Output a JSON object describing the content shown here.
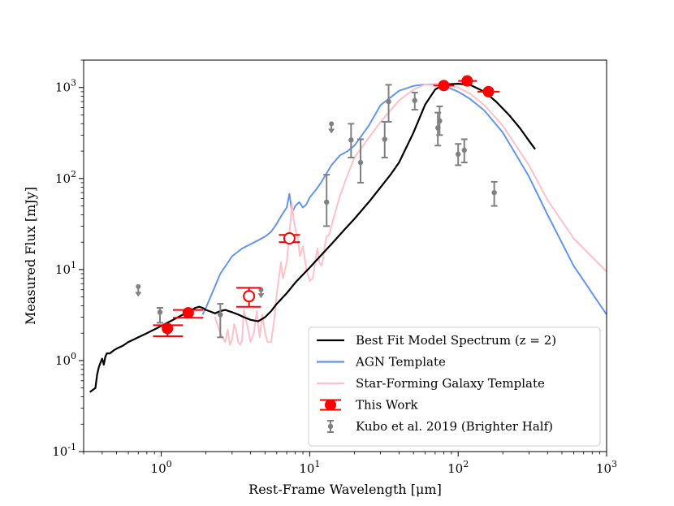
{
  "chart_data": {
    "type": "line",
    "title": "",
    "xlabel": "Rest-Frame Wavelength [μm]",
    "ylabel": "Measured Flux [mJy]",
    "xscale": "log",
    "yscale": "log",
    "xlim": [
      0.3,
      1000
    ],
    "ylim": [
      0.1,
      2000
    ],
    "grid": false,
    "legend_position": "bottom-right",
    "x_ticks": [
      {
        "value": 1,
        "base": "10",
        "exp": "0"
      },
      {
        "value": 10,
        "base": "10",
        "exp": "1"
      },
      {
        "value": 100,
        "base": "10",
        "exp": "2"
      },
      {
        "value": 1000,
        "base": "10",
        "exp": "3"
      }
    ],
    "y_ticks": [
      {
        "value": 0.1,
        "base": "10",
        "exp": "-1"
      },
      {
        "value": 1,
        "base": "10",
        "exp": "0"
      },
      {
        "value": 10,
        "base": "10",
        "exp": "1"
      },
      {
        "value": 100,
        "base": "10",
        "exp": "2"
      },
      {
        "value": 1000,
        "base": "10",
        "exp": "3"
      }
    ],
    "legend": [
      {
        "key": "best_fit",
        "label": "Best Fit Model Spectrum (z = 2)"
      },
      {
        "key": "agn",
        "label": "AGN Template"
      },
      {
        "key": "sfg",
        "label": "Star-Forming Galaxy Template"
      },
      {
        "key": "this_work",
        "label": "This Work"
      },
      {
        "key": "kubo",
        "label": "Kubo et al. 2019 (Brighter Half)"
      }
    ],
    "series": [
      {
        "key": "best_fit",
        "name": "Best Fit Model Spectrum (z = 2)",
        "color": "#000000",
        "x": [
          0.33,
          0.36,
          0.37,
          0.38,
          0.39,
          0.4,
          0.41,
          0.42,
          0.43,
          0.45,
          0.48,
          0.5,
          0.55,
          0.6,
          0.65,
          0.7,
          0.75,
          0.8,
          0.85,
          0.9,
          1.0,
          1.1,
          1.2,
          1.3,
          1.4,
          1.5,
          1.6,
          1.7,
          1.8,
          1.9,
          2.0,
          2.1,
          2.2,
          2.3,
          2.5,
          2.7,
          3.0,
          3.3,
          3.6,
          4.0,
          4.5,
          5.0,
          5.5,
          6.0,
          7.0,
          8.0,
          10,
          12,
          14,
          17,
          20,
          25,
          30,
          35,
          40,
          50,
          60,
          70,
          80,
          100,
          120,
          150,
          180,
          220,
          260,
          300,
          330
        ],
        "y": [
          0.45,
          0.5,
          0.7,
          0.85,
          0.95,
          1.05,
          0.9,
          1.1,
          1.2,
          1.2,
          1.3,
          1.35,
          1.45,
          1.6,
          1.7,
          1.8,
          1.9,
          2.0,
          2.1,
          2.2,
          2.4,
          2.6,
          2.8,
          3.0,
          3.2,
          3.4,
          3.6,
          3.8,
          3.9,
          3.8,
          3.6,
          3.5,
          3.4,
          3.3,
          3.5,
          3.6,
          3.4,
          3.2,
          3.0,
          2.8,
          2.7,
          3.0,
          3.5,
          4.2,
          5.5,
          7.2,
          10.5,
          14.5,
          19,
          27,
          36,
          55,
          80,
          110,
          150,
          320,
          650,
          950,
          1080,
          1100,
          1070,
          900,
          700,
          500,
          360,
          260,
          210
        ]
      },
      {
        "key": "agn",
        "name": "AGN Template",
        "color": "#6495ed",
        "x": [
          1.9,
          2.0,
          2.2,
          2.5,
          3.0,
          3.5,
          4.0,
          4.5,
          5.0,
          5.5,
          6.0,
          6.5,
          7.0,
          7.3,
          7.6,
          8.0,
          8.5,
          9.0,
          9.5,
          10.0,
          11.0,
          12.0,
          14.0,
          16.0,
          18.0,
          20.0,
          25.0,
          30.0,
          40.0,
          50.0,
          60.0,
          70.0,
          80.0,
          100.0,
          120.0,
          150.0,
          200.0,
          300.0,
          400.0,
          600.0,
          1000.0
        ],
        "y": [
          3.2,
          3.8,
          5.5,
          9.0,
          14.0,
          17.0,
          19.0,
          21.0,
          23.0,
          26.0,
          32.0,
          40.0,
          48.0,
          68.0,
          42.0,
          50.0,
          55.0,
          48.0,
          52.0,
          62.0,
          75.0,
          92.0,
          140.0,
          180.0,
          200.0,
          230.0,
          380.0,
          640.0,
          920.0,
          1040.0,
          1080.0,
          1080.0,
          1050.0,
          900.0,
          750.0,
          560.0,
          320.0,
          105.0,
          40.0,
          11.0,
          3.2
        ]
      },
      {
        "key": "sfg",
        "name": "Star-Forming Galaxy Template",
        "color": "#ffc0cb",
        "x": [
          2.3,
          2.5,
          2.7,
          2.8,
          2.9,
          3.0,
          3.1,
          3.2,
          3.3,
          3.4,
          3.5,
          3.6,
          3.8,
          4.0,
          4.2,
          4.4,
          4.6,
          4.8,
          5.0,
          5.2,
          5.5,
          5.8,
          6.0,
          6.2,
          6.4,
          6.6,
          7.0,
          7.3,
          7.6,
          7.8,
          8.0,
          8.3,
          8.6,
          9.0,
          9.5,
          10.0,
          10.5,
          11.0,
          11.3,
          11.6,
          12.0,
          12.3,
          12.6,
          13.0,
          13.5,
          14.0,
          15.0,
          16.0,
          18.0,
          20.0,
          25.0,
          30.0,
          40.0,
          50.0,
          60.0,
          70.0,
          80.0,
          100.0,
          120.0,
          150.0,
          200.0,
          300.0,
          400.0,
          600.0,
          1000.0
        ],
        "y": [
          3.0,
          2.0,
          1.6,
          2.2,
          1.5,
          1.7,
          2.5,
          2.1,
          1.6,
          1.5,
          1.65,
          3.6,
          2.4,
          1.6,
          2.0,
          3.5,
          1.8,
          3.2,
          2.0,
          1.6,
          1.6,
          3.0,
          5.5,
          8.0,
          12.0,
          8.0,
          12.0,
          25.0,
          52.0,
          35.0,
          28.0,
          22.0,
          14.0,
          18.0,
          10.0,
          7.5,
          8.0,
          14.0,
          17.0,
          12.0,
          11.0,
          13.0,
          18.0,
          23.0,
          24.0,
          30.0,
          45.0,
          65.0,
          110.0,
          170.0,
          280.0,
          420.0,
          720.0,
          950.0,
          1080.0,
          1100.0,
          1080.0,
          1000.0,
          860.0,
          640.0,
          380.0,
          140.0,
          58.0,
          22.0,
          9.5
        ]
      }
    ],
    "this_work_points": [
      {
        "x": 1.1,
        "y": 2.25,
        "xerr_lo": 0.22,
        "xerr_hi": 0.3,
        "y_band_lo": 1.85,
        "y_band_hi": 2.45,
        "filled": true
      },
      {
        "x": 1.52,
        "y": 3.35,
        "xerr_lo": 0.32,
        "xerr_hi": 0.4,
        "y_band_lo": 2.95,
        "y_band_hi": 3.6,
        "filled": true
      },
      {
        "x": 3.9,
        "y": 5.1,
        "xerr_lo": 0.7,
        "xerr_hi": 0.8,
        "y_band_lo": 3.9,
        "y_band_hi": 6.3,
        "filled": false
      },
      {
        "x": 7.3,
        "y": 22.0,
        "xerr_lo": 1.1,
        "xerr_hi": 1.3,
        "y_band_lo": 20.0,
        "y_band_hi": 24.0,
        "filled": false
      },
      {
        "x": 80.0,
        "y": 1050.0,
        "xerr_lo": 12.0,
        "xerr_hi": 14.0,
        "y_band_lo": 1050.0,
        "y_band_hi": 1050.0,
        "filled": true
      },
      {
        "x": 115.0,
        "y": 1180.0,
        "xerr_lo": 15.0,
        "xerr_hi": 19.0,
        "y_band_lo": 1180.0,
        "y_band_hi": 1180.0,
        "filled": true
      },
      {
        "x": 160.0,
        "y": 900.0,
        "xerr_lo": 25.0,
        "xerr_hi": 30.0,
        "y_band_lo": 900.0,
        "y_band_hi": 900.0,
        "filled": true
      }
    ],
    "kubo_points": [
      {
        "x": 0.7,
        "y": 5.8,
        "lo": 5.8,
        "hi": 6.5,
        "upper_limit": true
      },
      {
        "x": 0.98,
        "y": 3.4,
        "lo": 2.6,
        "hi": 3.8,
        "upper_limit": false
      },
      {
        "x": 2.5,
        "y": 3.2,
        "lo": 1.8,
        "hi": 4.2,
        "upper_limit": false
      },
      {
        "x": 4.7,
        "y": 5.6,
        "lo": 5.6,
        "hi": 6.0,
        "upper_limit": true
      },
      {
        "x": 13.0,
        "y": 55.0,
        "lo": 30.0,
        "hi": 110.0,
        "upper_limit": false
      },
      {
        "x": 14.0,
        "y": 360.0,
        "lo": 360.0,
        "hi": 400.0,
        "upper_limit": true
      },
      {
        "x": 19.0,
        "y": 265.0,
        "lo": 170.0,
        "hi": 400.0,
        "upper_limit": false
      },
      {
        "x": 22.0,
        "y": 150.0,
        "lo": 90.0,
        "hi": 270.0,
        "upper_limit": false
      },
      {
        "x": 32.0,
        "y": 270.0,
        "lo": 170.0,
        "hi": 420.0,
        "upper_limit": false
      },
      {
        "x": 34.0,
        "y": 700.0,
        "lo": 420.0,
        "hi": 1070.0,
        "upper_limit": false
      },
      {
        "x": 51.0,
        "y": 720.0,
        "lo": 570.0,
        "hi": 880.0,
        "upper_limit": false
      },
      {
        "x": 73.0,
        "y": 360.0,
        "lo": 230.0,
        "hi": 530.0,
        "upper_limit": false
      },
      {
        "x": 75.0,
        "y": 430.0,
        "lo": 300.0,
        "hi": 620.0,
        "upper_limit": false
      },
      {
        "x": 100.0,
        "y": 185.0,
        "lo": 140.0,
        "hi": 240.0,
        "upper_limit": false
      },
      {
        "x": 110.0,
        "y": 205.0,
        "lo": 150.0,
        "hi": 270.0,
        "upper_limit": false
      },
      {
        "x": 175.0,
        "y": 70.0,
        "lo": 50.0,
        "hi": 92.0,
        "upper_limit": false
      }
    ],
    "colors": {
      "this_work": "#ff0000",
      "kubo": "#808080",
      "axis": "#000000"
    }
  }
}
